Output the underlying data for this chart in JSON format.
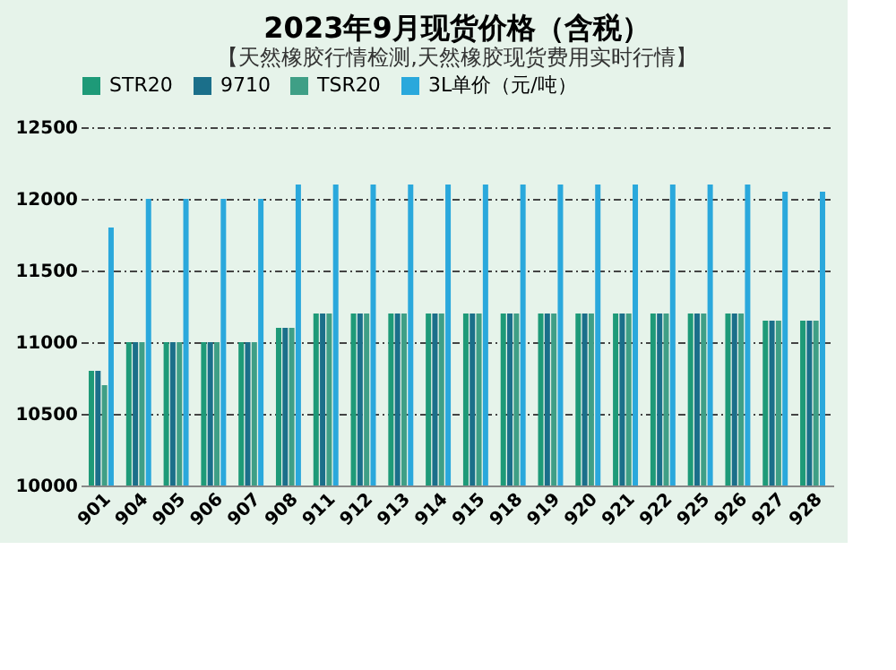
{
  "chart_data": {
    "type": "bar",
    "title": "2023年9月现货价格（含税）",
    "annotations": [
      "【天然橡胶行情检测,天然橡胶现货费用实时行情】"
    ],
    "categories": [
      "901",
      "904",
      "905",
      "906",
      "907",
      "908",
      "911",
      "912",
      "913",
      "914",
      "915",
      "918",
      "919",
      "920",
      "921",
      "922",
      "925",
      "926",
      "927",
      "928"
    ],
    "series": [
      {
        "name": "STR20",
        "color": "#1e9a78",
        "values": [
          10800,
          11000,
          11000,
          11000,
          11000,
          11100,
          11200,
          11200,
          11200,
          11200,
          11200,
          11200,
          11200,
          11200,
          11200,
          11200,
          11200,
          11200,
          11150,
          11150
        ]
      },
      {
        "name": "9710",
        "color": "#1b6f8a",
        "values": [
          10800,
          11000,
          11000,
          11000,
          11000,
          11100,
          11200,
          11200,
          11200,
          11200,
          11200,
          11200,
          11200,
          11200,
          11200,
          11200,
          11200,
          11200,
          11150,
          11150
        ]
      },
      {
        "name": "TSR20",
        "color": "#3f9f86",
        "values": [
          10700,
          11000,
          11000,
          11000,
          11000,
          11100,
          11200,
          11200,
          11200,
          11200,
          11200,
          11200,
          11200,
          11200,
          11200,
          11200,
          11200,
          11200,
          11150,
          11150
        ]
      },
      {
        "name": "3L单价（元/吨）",
        "color": "#2aa8dc",
        "values": [
          11800,
          12000,
          12000,
          12000,
          12000,
          12100,
          12100,
          12100,
          12100,
          12100,
          12100,
          12100,
          12100,
          12100,
          12100,
          12100,
          12100,
          12100,
          12050,
          12050
        ]
      }
    ],
    "ylim": [
      10000,
      12500
    ],
    "yticks": [
      10000,
      10500,
      11000,
      11500,
      12000,
      12500
    ],
    "grid": "y",
    "legend": "top"
  }
}
